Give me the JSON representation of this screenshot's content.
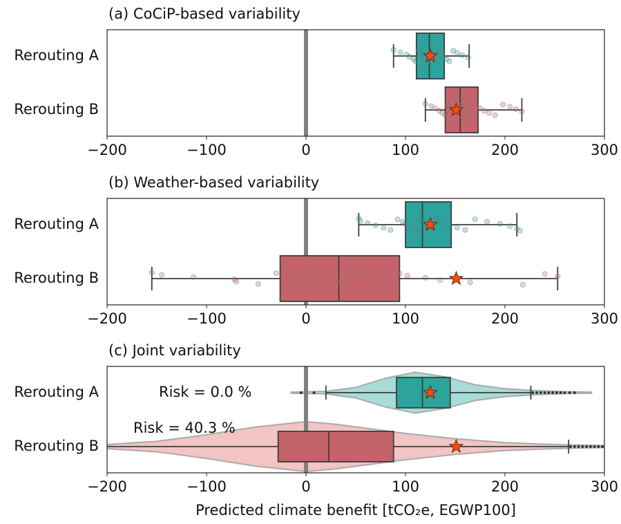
{
  "chart_data": [
    {
      "type": "box",
      "title": "(a) CoCiP-based variability",
      "categories": [
        "Rerouting A",
        "Rerouting B"
      ],
      "xlim": [
        -200,
        300
      ],
      "xticks": [
        {
          "value": -200,
          "label": "−200"
        },
        {
          "value": -100,
          "label": "−100"
        },
        0,
        100,
        200,
        300
      ],
      "reference_line": 0,
      "boxes": [
        {
          "color": "#2ca39c",
          "whislo": 88,
          "q1": 111,
          "med": 124,
          "q3": 139,
          "whishi": 164,
          "mean": 125,
          "points": [
            88,
            95,
            101,
            104,
            108,
            110,
            113,
            115,
            117,
            119,
            120,
            122,
            124,
            125,
            127,
            128,
            130,
            132,
            134,
            136,
            138,
            141,
            144,
            148,
            152,
            157,
            163
          ]
        },
        {
          "color": "#c4646a",
          "whislo": 120,
          "q1": 140,
          "med": 155,
          "q3": 173,
          "whishi": 217,
          "mean": 151,
          "points": [
            120,
            126,
            130,
            134,
            137,
            140,
            142,
            145,
            147,
            150,
            152,
            154,
            156,
            158,
            160,
            163,
            165,
            168,
            171,
            175,
            179,
            184,
            190,
            198,
            205,
            211,
            217
          ]
        }
      ]
    },
    {
      "type": "box",
      "title": "(b) Weather-based variability",
      "categories": [
        "Rerouting A",
        "Rerouting B"
      ],
      "xlim": [
        -200,
        300
      ],
      "xticks": [
        {
          "value": -200,
          "label": "−200"
        },
        {
          "value": -100,
          "label": "−100"
        },
        0,
        100,
        200,
        300
      ],
      "reference_line": 0,
      "boxes": [
        {
          "color": "#2ca39c",
          "whislo": 53,
          "q1": 100,
          "med": 117,
          "q3": 146,
          "whishi": 212,
          "mean": 125,
          "points": [
            53,
            55,
            62,
            70,
            78,
            85,
            92,
            97,
            100,
            104,
            108,
            111,
            114,
            117,
            120,
            123,
            127,
            131,
            135,
            140,
            145,
            152,
            160,
            170,
            182,
            195,
            205,
            212,
            215
          ]
        },
        {
          "color": "#c4646a",
          "whislo": -155,
          "q1": -26,
          "med": 33,
          "q3": 94,
          "whishi": 253,
          "mean": 151,
          "points": [
            -155,
            -145,
            -113,
            -72,
            -70,
            -48,
            -30,
            -18,
            -12,
            -5,
            0,
            6,
            12,
            20,
            25,
            33,
            40,
            48,
            55,
            62,
            70,
            78,
            88,
            94,
            102,
            120,
            135,
            165,
            218,
            240,
            253
          ]
        }
      ]
    },
    {
      "type": "violin",
      "title": "(c) Joint variability",
      "categories": [
        "Rerouting A",
        "Rerouting B"
      ],
      "xlabel": "Predicted climate benefit [tCO₂e, EGWP100]",
      "xlim": [
        -200,
        300
      ],
      "xticks": [
        {
          "value": -200,
          "label": "−200"
        },
        {
          "value": -100,
          "label": "−100"
        },
        0,
        100,
        200,
        300
      ],
      "reference_line": 0,
      "annotations": [
        "Risk = 0.0 %",
        "Risk = 40.3 %"
      ],
      "boxes": [
        {
          "color": "#2ca39c",
          "violin_color": "#a8dcd7",
          "whislo": 20,
          "q1": 91,
          "med": 117,
          "q3": 145,
          "whishi": 226,
          "mean": 125,
          "outliers": [
            -5,
            8,
            228,
            232,
            236,
            240,
            244,
            248,
            252,
            256,
            260,
            265,
            270
          ],
          "violin": {
            "x": [
              -15,
              20,
              50,
              80,
              110,
              140,
              170,
              200,
              230,
              260,
              287
            ],
            "width": [
              0.02,
              0.05,
              0.2,
              0.55,
              0.78,
              0.6,
              0.3,
              0.15,
              0.08,
              0.04,
              0.02
            ]
          }
        },
        {
          "color": "#c4646a",
          "violin_color": "#f2c4c4",
          "whislo": -215,
          "q1": -28,
          "med": 23,
          "q3": 88,
          "whishi": 264,
          "mean": 151,
          "outliers": [
            266,
            270,
            274,
            278,
            282,
            286,
            290,
            294,
            298
          ],
          "violin": {
            "x": [
              -230,
              -200,
              -150,
              -100,
              -50,
              0,
              30,
              60,
              100,
              150,
              200,
              250,
              300,
              320
            ],
            "width": [
              0.04,
              0.08,
              0.2,
              0.45,
              0.75,
              0.95,
              0.85,
              0.7,
              0.5,
              0.3,
              0.15,
              0.08,
              0.04,
              0.02
            ]
          }
        }
      ]
    }
  ]
}
